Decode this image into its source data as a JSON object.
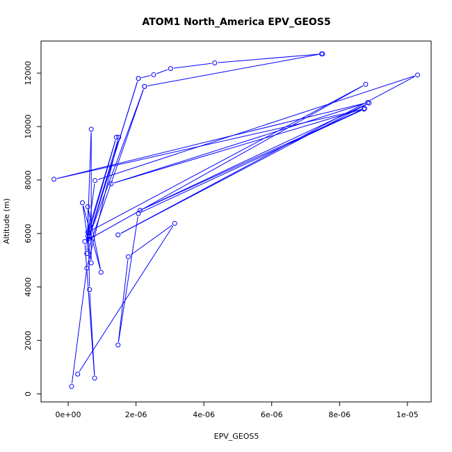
{
  "chart_data": {
    "type": "line",
    "title": "ATOM1 North_America EPV_GEOS5",
    "xlabel": "EPV_GEOS5",
    "ylabel": "Altitude (m)",
    "xlim": [
      -8e-07,
      1.07e-05
    ],
    "ylim": [
      -300,
      13200
    ],
    "x_ticks": [
      {
        "value": 0,
        "label": "0e+00"
      },
      {
        "value": 2e-06,
        "label": "2e-06"
      },
      {
        "value": 4e-06,
        "label": "4e-06"
      },
      {
        "value": 6e-06,
        "label": "6e-06"
      },
      {
        "value": 8e-06,
        "label": "8e-06"
      },
      {
        "value": 1e-05,
        "label": "1e-05"
      }
    ],
    "y_ticks": [
      {
        "value": 0,
        "label": "0"
      },
      {
        "value": 2000,
        "label": "2000"
      },
      {
        "value": 4000,
        "label": "4000"
      },
      {
        "value": 6000,
        "label": "6000"
      },
      {
        "value": 8000,
        "label": "8000"
      },
      {
        "value": 10000,
        "label": "10000"
      },
      {
        "value": 12000,
        "label": "12000"
      }
    ],
    "color": "#0000ff",
    "grid": false,
    "series": [
      {
        "points": [
          [
            1e-07,
            280
          ],
          [
            5.5e-07,
            4700
          ],
          [
            1.49e-06,
            9600
          ],
          [
            6e-07,
            5800
          ],
          [
            2.07e-06,
            11800
          ],
          [
            6.2e-07,
            5900
          ],
          [
            2.25e-06,
            11500
          ],
          [
            5.5e-07,
            5250
          ],
          [
            6.8e-07,
            9900
          ],
          [
            6.8e-07,
            4900
          ],
          [
            4.2e-07,
            7150
          ],
          [
            9.7e-07,
            4550
          ],
          [
            5.8e-07,
            7000
          ],
          [
            6.3e-07,
            3900
          ],
          [
            7.8e-07,
            590
          ],
          [
            4.9e-07,
            5700
          ],
          [
            8.77e-06,
            11580
          ],
          [
            5.8e-07,
            6050
          ],
          [
            1.42e-06,
            9600
          ],
          [
            5.8e-07,
            5900
          ],
          [
            7.9e-07,
            7980
          ],
          [
            1.03e-05,
            11930
          ],
          [
            1.47e-06,
            5950
          ],
          [
            8.87e-06,
            10880
          ],
          [
            2.12e-06,
            6870
          ],
          [
            8.74e-06,
            10680
          ],
          [
            1.27e-06,
            7860
          ],
          [
            8.83e-06,
            10900
          ],
          [
            -4.2e-07,
            8030
          ],
          [
            8.72e-06,
            10650
          ],
          [
            2.07e-06,
            6750
          ],
          [
            1.47e-06,
            1830
          ],
          [
            1.77e-06,
            5130
          ],
          [
            3.14e-06,
            6380
          ],
          [
            2.8e-07,
            740
          ]
        ]
      },
      {
        "points": [
          [
            2.25e-06,
            11500
          ],
          [
            7.47e-06,
            12720
          ],
          [
            7.5e-06,
            12720
          ],
          [
            4.32e-06,
            12380
          ],
          [
            3.02e-06,
            12170
          ],
          [
            2.52e-06,
            11940
          ],
          [
            2.07e-06,
            11800
          ]
        ]
      }
    ]
  }
}
